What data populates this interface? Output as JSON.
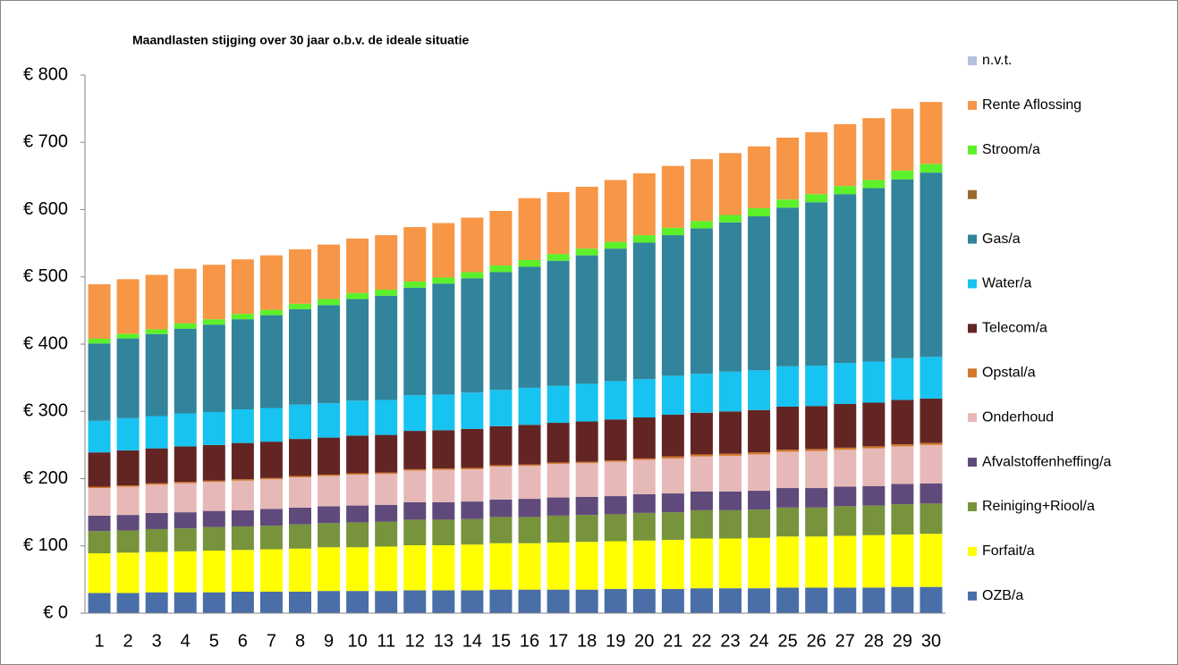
{
  "chart_data": {
    "type": "stacked-bar",
    "title": "Maandlasten stijging over 30 jaar o.b.v. de ideale situatie",
    "categories": [
      "1",
      "2",
      "3",
      "4",
      "5",
      "6",
      "7",
      "8",
      "9",
      "10",
      "11",
      "12",
      "13",
      "14",
      "15",
      "16",
      "17",
      "18",
      "19",
      "20",
      "21",
      "22",
      "23",
      "24",
      "25",
      "26",
      "27",
      "28",
      "29",
      "30"
    ],
    "ylim": [
      0,
      800
    ],
    "yticks": [
      {
        "value": 0,
        "label": "€ 0"
      },
      {
        "value": 100,
        "label": "€ 100"
      },
      {
        "value": 200,
        "label": "€ 200"
      },
      {
        "value": 300,
        "label": "€ 300"
      },
      {
        "value": 400,
        "label": "€ 400"
      },
      {
        "value": 500,
        "label": "€ 500"
      },
      {
        "value": 600,
        "label": "€ 600"
      },
      {
        "value": 700,
        "label": "€ 700"
      },
      {
        "value": 800,
        "label": "€ 800"
      }
    ],
    "grid": false,
    "legend": "right",
    "series": [
      {
        "name": "OZB/a",
        "color": "#4a6ea8",
        "values": [
          30,
          30,
          31,
          31,
          31,
          32,
          32,
          32,
          33,
          33,
          33,
          34,
          34,
          34,
          35,
          35,
          35,
          35,
          36,
          36,
          36,
          37,
          37,
          37,
          38,
          38,
          38,
          38,
          39,
          39
        ]
      },
      {
        "name": "Forfait/a",
        "color": "#ffff00",
        "values": [
          59,
          60,
          60,
          61,
          62,
          62,
          63,
          64,
          65,
          65,
          66,
          67,
          67,
          68,
          69,
          69,
          70,
          71,
          71,
          72,
          73,
          74,
          74,
          75,
          76,
          76,
          77,
          78,
          78,
          79
        ]
      },
      {
        "name": "Reiniging+Riool/a",
        "color": "#77933c",
        "values": [
          33,
          33,
          34,
          34,
          35,
          35,
          35,
          36,
          36,
          37,
          37,
          38,
          38,
          38,
          39,
          39,
          40,
          40,
          40,
          41,
          41,
          42,
          42,
          42,
          43,
          43,
          44,
          44,
          45,
          45
        ]
      },
      {
        "name": "Afvalstoffenheffing/a",
        "color": "#604a7b",
        "values": [
          23,
          23,
          24,
          24,
          24,
          24,
          25,
          25,
          25,
          25,
          25,
          26,
          26,
          26,
          26,
          27,
          27,
          27,
          27,
          28,
          28,
          28,
          28,
          28,
          29,
          29,
          29,
          29,
          30,
          30
        ]
      },
      {
        "name": "Onderhoud",
        "color": "#e6b9b8",
        "values": [
          41,
          42,
          42,
          43,
          43,
          44,
          44,
          45,
          45,
          46,
          46,
          47,
          48,
          48,
          49,
          49,
          50,
          50,
          51,
          51,
          52,
          52,
          53,
          54,
          54,
          55,
          55,
          56,
          56,
          57
        ]
      },
      {
        "name": "Opstal/a",
        "color": "#d4772b",
        "values": [
          2,
          2,
          2,
          2,
          2,
          2,
          2,
          2,
          2,
          2,
          2,
          2,
          2,
          2,
          2,
          2,
          2,
          2,
          2,
          2,
          3,
          3,
          3,
          3,
          3,
          3,
          3,
          3,
          3,
          3
        ]
      },
      {
        "name": "Telecom/a",
        "color": "#632523",
        "values": [
          51,
          52,
          52,
          53,
          53,
          54,
          54,
          55,
          55,
          56,
          56,
          57,
          57,
          58,
          58,
          59,
          59,
          60,
          61,
          61,
          62,
          62,
          63,
          63,
          64,
          64,
          65,
          65,
          66,
          66
        ]
      },
      {
        "name": "Water/a",
        "color": "#17c3f0",
        "values": [
          47,
          48,
          48,
          49,
          49,
          50,
          50,
          51,
          51,
          52,
          52,
          53,
          53,
          54,
          54,
          55,
          55,
          56,
          57,
          57,
          58,
          58,
          59,
          59,
          60,
          60,
          61,
          61,
          62,
          62
        ]
      },
      {
        "name": "Gas/a",
        "color": "#31849b",
        "values": [
          115,
          118.5,
          122,
          126,
          130,
          134,
          138,
          142,
          146,
          151,
          155,
          160,
          165,
          170,
          175,
          180,
          186,
          191,
          197,
          203,
          209,
          216,
          222,
          229,
          236,
          243,
          251,
          258,
          266,
          274
        ]
      },
      {
        "name": null,
        "color": "#9b6a2f",
        "values": [
          0,
          0,
          0,
          0,
          0,
          0,
          0,
          0,
          0,
          0,
          0,
          0,
          0,
          0,
          0,
          0,
          0,
          0,
          0,
          0,
          0,
          0,
          0,
          0,
          0,
          0,
          0,
          0,
          0,
          0
        ]
      },
      {
        "name": "Stroom/a",
        "color": "#5cf02a",
        "values": [
          7,
          7,
          7,
          8,
          8,
          8,
          8,
          8,
          9,
          9,
          9,
          9,
          9,
          9,
          10,
          10,
          10,
          10,
          10,
          11,
          11,
          11,
          11,
          12,
          12,
          12,
          12,
          12,
          13,
          13
        ]
      },
      {
        "name": "Rente Aflossing",
        "color": "#f79646",
        "values": [
          81,
          81,
          81,
          81,
          81,
          81,
          81,
          81,
          81,
          81,
          81,
          81,
          81,
          81,
          81,
          92,
          92,
          92,
          92,
          92,
          92,
          92,
          92,
          92,
          92,
          92,
          92,
          92,
          92,
          92
        ]
      },
      {
        "name": "n.v.t.",
        "color": "#b3c2dd",
        "values": [
          0,
          0,
          0,
          0,
          0,
          0,
          0,
          0,
          0,
          0,
          0,
          0,
          0,
          0,
          0,
          0,
          0,
          0,
          0,
          0,
          0,
          0,
          0,
          0,
          0,
          0,
          0,
          0,
          0,
          0
        ]
      }
    ]
  }
}
